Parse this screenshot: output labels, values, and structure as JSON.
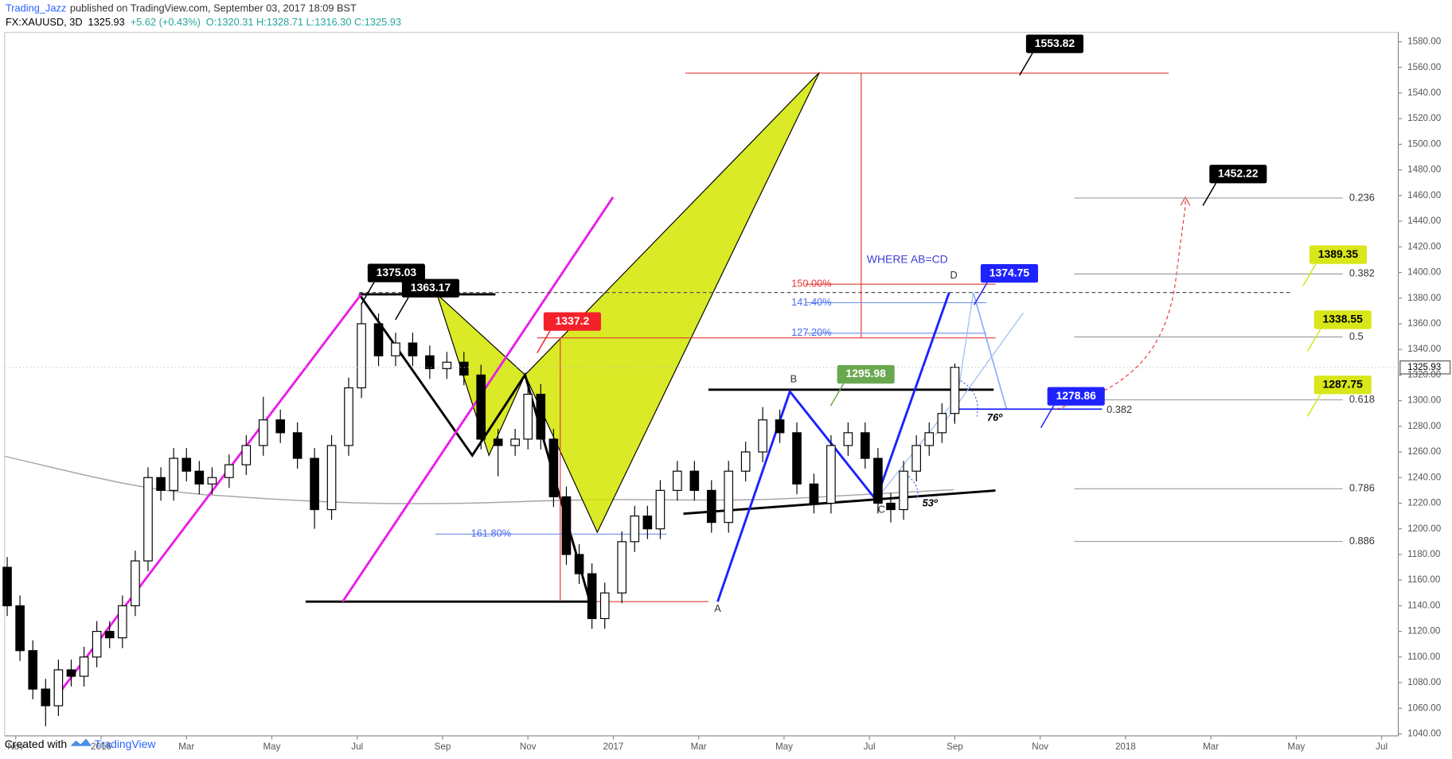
{
  "header": {
    "publisher": "Trading_Jazz",
    "published": "published on TradingView.com, September 03, 2017 18:09 BST",
    "symbol": "FX:XAUUSD, 3D",
    "last": "1325.93",
    "change": "+5.62 (+0.43%)",
    "ohlc": "O:1320.31 H:1328.71 L:1316.30 C:1325.93"
  },
  "chart_data": {
    "type": "candlestick",
    "x": [
      -0.2,
      0.1,
      0.4,
      0.7,
      1.0,
      1.3,
      1.6,
      1.9,
      2.2,
      2.5,
      2.8,
      3.1,
      3.4,
      3.7,
      4.0,
      4.3,
      4.6,
      5.0,
      5.4,
      5.8,
      6.2,
      6.6,
      7.0,
      7.4,
      7.8,
      8.1,
      8.5,
      8.9,
      9.3,
      9.7,
      10.1,
      10.5,
      10.9,
      11.3,
      11.7,
      12.0,
      12.3,
      12.6,
      12.9,
      13.2,
      13.5,
      13.8,
      14.2,
      14.5,
      14.8,
      15.1,
      15.5,
      15.9,
      16.3,
      16.7,
      17.1,
      17.5,
      17.9,
      18.3,
      18.7,
      19.1,
      19.5,
      19.9,
      20.2,
      20.5,
      20.8,
      21.1,
      21.4,
      21.7,
      22.0
    ],
    "open": [
      1170,
      1140,
      1105,
      1075,
      1062,
      1090,
      1085,
      1100,
      1120,
      1115,
      1140,
      1175,
      1240,
      1230,
      1255,
      1245,
      1235,
      1240,
      1250,
      1265,
      1285,
      1275,
      1255,
      1215,
      1265,
      1310,
      1360,
      1335,
      1345,
      1335,
      1325,
      1330,
      1320,
      1270,
      1265,
      1270,
      1305,
      1270,
      1225,
      1180,
      1165,
      1130,
      1150,
      1190,
      1210,
      1200,
      1230,
      1245,
      1230,
      1205,
      1245,
      1260,
      1285,
      1275,
      1235,
      1220,
      1265,
      1275,
      1255,
      1220,
      1215,
      1245,
      1265,
      1275,
      1290
    ],
    "high": [
      1178,
      1148,
      1113,
      1083,
      1098,
      1098,
      1108,
      1128,
      1128,
      1148,
      1183,
      1248,
      1248,
      1263,
      1263,
      1253,
      1248,
      1258,
      1273,
      1303,
      1293,
      1283,
      1263,
      1273,
      1318,
      1375,
      1368,
      1353,
      1353,
      1343,
      1338,
      1338,
      1328,
      1278,
      1278,
      1313,
      1313,
      1278,
      1233,
      1188,
      1173,
      1158,
      1198,
      1218,
      1218,
      1238,
      1253,
      1253,
      1238,
      1253,
      1268,
      1295,
      1293,
      1283,
      1243,
      1273,
      1283,
      1283,
      1263,
      1228,
      1253,
      1273,
      1283,
      1298,
      1329
    ],
    "low": [
      1132,
      1097,
      1067,
      1046,
      1054,
      1077,
      1077,
      1092,
      1107,
      1107,
      1132,
      1167,
      1222,
      1222,
      1237,
      1227,
      1227,
      1232,
      1242,
      1257,
      1267,
      1247,
      1200,
      1207,
      1257,
      1302,
      1327,
      1327,
      1327,
      1317,
      1317,
      1312,
      1262,
      1241,
      1257,
      1262,
      1262,
      1217,
      1172,
      1157,
      1122,
      1122,
      1142,
      1182,
      1192,
      1192,
      1222,
      1222,
      1197,
      1197,
      1237,
      1252,
      1267,
      1227,
      1212,
      1212,
      1257,
      1247,
      1212,
      1205,
      1207,
      1237,
      1257,
      1267,
      1282
    ],
    "close": [
      1140,
      1105,
      1075,
      1062,
      1090,
      1085,
      1100,
      1120,
      1115,
      1140,
      1175,
      1240,
      1230,
      1255,
      1245,
      1235,
      1240,
      1250,
      1265,
      1285,
      1275,
      1255,
      1215,
      1265,
      1310,
      1360,
      1335,
      1345,
      1335,
      1325,
      1330,
      1320,
      1270,
      1265,
      1270,
      1305,
      1270,
      1225,
      1180,
      1165,
      1130,
      1150,
      1190,
      1210,
      1200,
      1230,
      1245,
      1230,
      1205,
      1245,
      1260,
      1285,
      1275,
      1235,
      1220,
      1265,
      1275,
      1255,
      1220,
      1215,
      1245,
      1265,
      1275,
      1290,
      1326
    ],
    "up_color": "#ffffff",
    "down_color": "#000000",
    "xlim": [
      -0.26,
      32.39
    ],
    "xticks": [
      {
        "value": 0,
        "label": "Nov"
      },
      {
        "value": 2,
        "label": "2016"
      },
      {
        "value": 4,
        "label": "Mar"
      },
      {
        "value": 6,
        "label": "May"
      },
      {
        "value": 8,
        "label": "Jul"
      },
      {
        "value": 10,
        "label": "Sep"
      },
      {
        "value": 12,
        "label": "Nov"
      },
      {
        "value": 14,
        "label": "2017"
      },
      {
        "value": 16,
        "label": "Mar"
      },
      {
        "value": 18,
        "label": "May"
      },
      {
        "value": 20,
        "label": "Jul"
      },
      {
        "value": 22,
        "label": "Sep"
      },
      {
        "value": 24,
        "label": "Nov"
      },
      {
        "value": 26,
        "label": "2018"
      },
      {
        "value": 28,
        "label": "Mar"
      },
      {
        "value": 30,
        "label": "May"
      },
      {
        "value": 32,
        "label": "Jul"
      }
    ],
    "ylim": [
      1038.5,
      1587.3
    ],
    "yticks": [
      {
        "value": 1040,
        "label": "1040.00"
      },
      {
        "value": 1060,
        "label": "1060.00"
      },
      {
        "value": 1080,
        "label": "1080.00"
      },
      {
        "value": 1100,
        "label": "1100.00"
      },
      {
        "value": 1120,
        "label": "1120.00"
      },
      {
        "value": 1140,
        "label": "1140.00"
      },
      {
        "value": 1160,
        "label": "1160.00"
      },
      {
        "value": 1180,
        "label": "1180.00"
      },
      {
        "value": 1200,
        "label": "1200.00"
      },
      {
        "value": 1220,
        "label": "1220.00"
      },
      {
        "value": 1240,
        "label": "1240.00"
      },
      {
        "value": 1260,
        "label": "1260.00"
      },
      {
        "value": 1280,
        "label": "1280.00"
      },
      {
        "value": 1300,
        "label": "1300.00"
      },
      {
        "value": 1320,
        "label": "1320.00"
      },
      {
        "value": 1340,
        "label": "1340.00"
      },
      {
        "value": 1360,
        "label": "1360.00"
      },
      {
        "value": 1380,
        "label": "1380.00"
      },
      {
        "value": 1400,
        "label": "1400.00"
      },
      {
        "value": 1420,
        "label": "1420.00"
      },
      {
        "value": 1440,
        "label": "1440.00"
      },
      {
        "value": 1460,
        "label": "1460.00"
      },
      {
        "value": 1480,
        "label": "1480.00"
      },
      {
        "value": 1500,
        "label": "1500.00"
      },
      {
        "value": 1520,
        "label": "1520.00"
      },
      {
        "value": 1540,
        "label": "1540.00"
      },
      {
        "value": 1560,
        "label": "1560.00"
      },
      {
        "value": 1580,
        "label": "1580.00"
      }
    ],
    "grid": false,
    "last_price": 1325.93,
    "price_labels": [
      {
        "value": 1553.82,
        "color": "#000000",
        "text_color": "#ffffff"
      },
      {
        "value": 1452.22,
        "color": "#000000",
        "text_color": "#ffffff"
      },
      {
        "value": 1375.03,
        "color": "#000000",
        "text_color": "#ffffff"
      },
      {
        "value": 1363.17,
        "color": "#000000",
        "text_color": "#ffffff"
      },
      {
        "value": 1337.2,
        "color": "#f4212b",
        "text_color": "#ffffff"
      },
      {
        "value": 1295.98,
        "color": "#6aa84f",
        "text_color": "#ffffff"
      },
      {
        "value": 1374.75,
        "color": "#1e22ff",
        "text_color": "#ffffff"
      },
      {
        "value": 1278.86,
        "color": "#1e22ff",
        "text_color": "#ffffff"
      },
      {
        "value": 1389.35,
        "color": "#d8e61a",
        "text_color": "#000000"
      },
      {
        "value": 1338.55,
        "color": "#d8e61a",
        "text_color": "#000000"
      },
      {
        "value": 1287.75,
        "color": "#d8e61a",
        "text_color": "#000000"
      }
    ],
    "fib_levels": [
      0.236,
      0.382,
      0.5,
      0.618,
      0.786,
      0.886
    ],
    "fib_level_blue": 0.382,
    "percent_labels": [
      "150.00%",
      "141.40%",
      "127.20%",
      "161.80%"
    ],
    "points": [
      "A",
      "B",
      "C",
      "D"
    ],
    "note": "WHERE AB=CD",
    "angles": [
      "76º",
      "53º"
    ]
  },
  "footer": {
    "created": "Created with",
    "brand": "TradingView"
  }
}
